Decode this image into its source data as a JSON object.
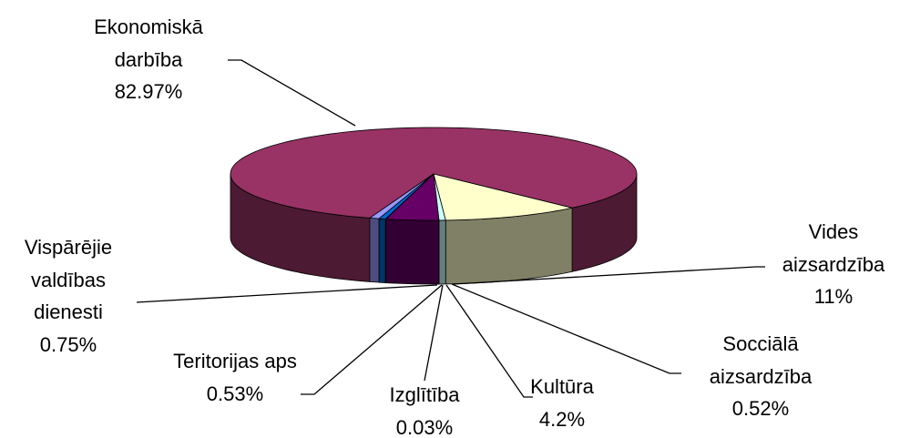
{
  "chart_data": {
    "type": "pie",
    "categories": [
      "Ekonomiskā darbība",
      "Vides aizsardzība",
      "Socciālā aizsardzība",
      "Kultūra",
      "Izglītība",
      "Teritorijas aps",
      "Vispārējie valdības dienesti"
    ],
    "values": [
      82.97,
      11,
      0.52,
      4.2,
      0.03,
      0.53,
      0.75
    ],
    "value_labels": [
      "82.97%",
      "11%",
      "0.52%",
      "4.2%",
      "0.03%",
      "0.53%",
      "0.75%"
    ],
    "colors": [
      "#993366",
      "#ffffcc",
      "#ccffff",
      "#660066",
      "#ff8080",
      "#0066cc",
      "#9999ff"
    ]
  }
}
